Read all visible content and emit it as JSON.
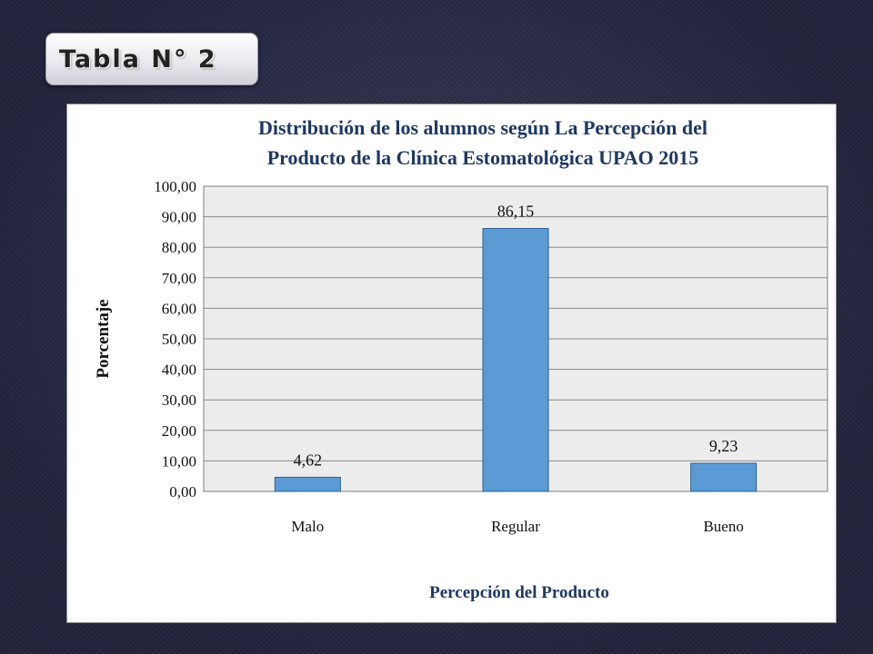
{
  "slide": {
    "title": "Tabla N° 2"
  },
  "chart_data": {
    "type": "bar",
    "title_lines": [
      "Distribución de los alumnos según La Percepción del",
      "Producto de la Clínica Estomatológica UPAO 2015"
    ],
    "categories": [
      "Malo",
      "Regular",
      "Bueno"
    ],
    "values": [
      4.62,
      86.15,
      9.23
    ],
    "value_labels": [
      "4,62",
      "86,15",
      "9,23"
    ],
    "xlabel": "Percepción del Producto",
    "ylabel": "Porcentaje",
    "ylim": [
      0,
      100
    ],
    "yticks": [
      "0,00",
      "10,00",
      "20,00",
      "30,00",
      "40,00",
      "50,00",
      "60,00",
      "70,00",
      "80,00",
      "90,00",
      "100,00"
    ],
    "grid": true,
    "legend": "none",
    "colors": {
      "bar": "#5b9bd5",
      "bar_border": "#2f5f8f",
      "plot_bg": "#ececec",
      "title": "#1f3864"
    }
  }
}
